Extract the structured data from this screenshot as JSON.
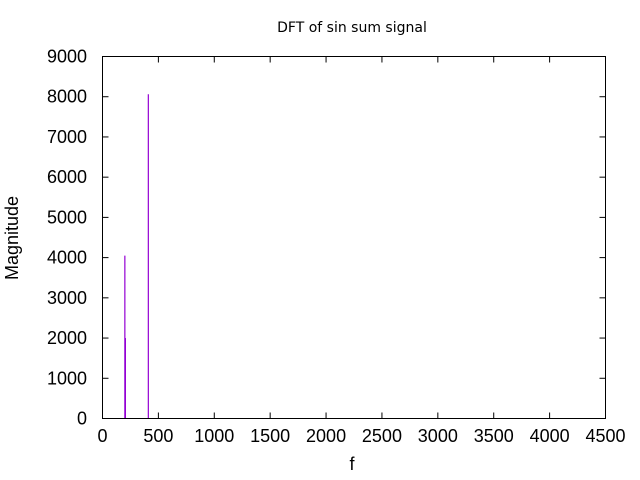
{
  "chart_data": {
    "type": "bar",
    "title": "DFT of sin sum signal",
    "xlabel": "f",
    "ylabel": "Magnitude",
    "xlim": [
      0,
      4500
    ],
    "ylim": [
      0,
      9000
    ],
    "x_ticks": [
      0,
      500,
      1000,
      1500,
      2000,
      2500,
      3000,
      3500,
      4000,
      4500
    ],
    "y_ticks": [
      0,
      1000,
      2000,
      3000,
      4000,
      5000,
      6000,
      7000,
      8000,
      9000
    ],
    "grid": false,
    "legend": "none",
    "series": [
      {
        "color": "#9400d3",
        "x": [
          200,
          205,
          410
        ],
        "y": [
          4050,
          2000,
          8060
        ]
      }
    ]
  }
}
